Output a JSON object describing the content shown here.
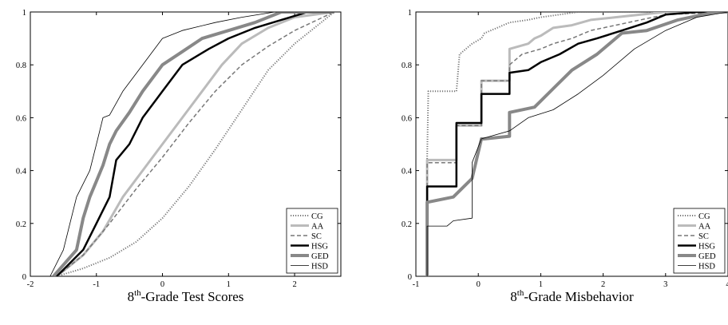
{
  "chart_data": [
    {
      "type": "line",
      "xlabel_base": "8",
      "xlabel_sup": "th",
      "xlabel_rest": "-Grade Test Scores",
      "xlim": [
        -2,
        2.7
      ],
      "ylim": [
        0,
        1
      ],
      "xticks": [
        -2,
        -1,
        0,
        1,
        2
      ],
      "yticks": [
        0,
        0.2,
        0.4,
        0.6,
        0.8,
        1
      ],
      "legend_position": "bottom-right",
      "series": [
        {
          "name": "CG",
          "color": "#777777",
          "style": "dotted",
          "width": 2,
          "x": [
            -1.6,
            -1.2,
            -0.8,
            -0.4,
            0.0,
            0.4,
            0.8,
            1.2,
            1.6,
            2.0,
            2.3,
            2.6
          ],
          "y": [
            0.0,
            0.03,
            0.07,
            0.13,
            0.22,
            0.34,
            0.48,
            0.63,
            0.78,
            0.88,
            0.94,
            1.0
          ]
        },
        {
          "name": "AA",
          "color": "#bbbbbb",
          "style": "solid",
          "width": 3,
          "x": [
            -1.6,
            -1.2,
            -0.9,
            -0.6,
            -0.3,
            0.0,
            0.3,
            0.6,
            0.9,
            1.2,
            1.6,
            2.0,
            2.6
          ],
          "y": [
            0.0,
            0.08,
            0.17,
            0.3,
            0.4,
            0.5,
            0.6,
            0.7,
            0.8,
            0.88,
            0.94,
            0.98,
            1.0
          ]
        },
        {
          "name": "SC",
          "color": "#777777",
          "style": "dashed",
          "width": 1.5,
          "x": [
            -1.6,
            -1.2,
            -0.8,
            -0.4,
            0.0,
            0.4,
            0.8,
            1.2,
            1.6,
            2.0,
            2.6
          ],
          "y": [
            0.0,
            0.08,
            0.2,
            0.33,
            0.45,
            0.58,
            0.7,
            0.8,
            0.87,
            0.93,
            1.0
          ]
        },
        {
          "name": "HSG",
          "color": "#000000",
          "style": "solid",
          "width": 2.5,
          "x": [
            -1.6,
            -1.2,
            -1.0,
            -0.8,
            -0.7,
            -0.5,
            -0.3,
            0.0,
            0.3,
            0.7,
            1.0,
            1.4,
            1.8,
            2.2,
            2.6
          ],
          "y": [
            0.0,
            0.1,
            0.2,
            0.3,
            0.44,
            0.5,
            0.6,
            0.7,
            0.8,
            0.86,
            0.9,
            0.94,
            0.97,
            1.0,
            1.0
          ]
        },
        {
          "name": "GED",
          "color": "#888888",
          "style": "solid",
          "width": 4,
          "x": [
            -1.65,
            -1.3,
            -1.2,
            -1.1,
            -1.0,
            -0.9,
            -0.8,
            -0.7,
            -0.5,
            -0.3,
            0.0,
            0.3,
            0.6,
            1.0,
            1.4,
            1.8,
            2.2,
            2.6
          ],
          "y": [
            0.0,
            0.1,
            0.22,
            0.3,
            0.36,
            0.42,
            0.5,
            0.55,
            0.62,
            0.7,
            0.8,
            0.85,
            0.9,
            0.93,
            0.96,
            1.0,
            1.0,
            1.0
          ]
        },
        {
          "name": "HSD",
          "color": "#000000",
          "style": "solid",
          "width": 0.8,
          "x": [
            -1.7,
            -1.5,
            -1.3,
            -1.1,
            -1.0,
            -0.9,
            -0.8,
            -0.6,
            -0.3,
            0.0,
            0.3,
            0.8,
            1.2,
            1.7,
            2.6
          ],
          "y": [
            0.0,
            0.1,
            0.3,
            0.4,
            0.5,
            0.6,
            0.61,
            0.7,
            0.8,
            0.9,
            0.93,
            0.96,
            0.98,
            1.0,
            1.0
          ]
        }
      ]
    },
    {
      "type": "line",
      "xlabel_base": "8",
      "xlabel_sup": "th",
      "xlabel_rest": "-Grade Misbehavior",
      "xlim": [
        -1,
        4
      ],
      "ylim": [
        0,
        1
      ],
      "xticks": [
        -1,
        0,
        1,
        2,
        3,
        4
      ],
      "yticks": [
        0,
        0.2,
        0.4,
        0.6,
        0.8,
        1
      ],
      "legend_position": "bottom-right",
      "series": [
        {
          "name": "CG",
          "color": "#777777",
          "style": "dotted",
          "width": 2,
          "x": [
            -0.82,
            -0.82,
            -0.8,
            -0.35,
            -0.3,
            -0.2,
            -0.1,
            0.05,
            0.1,
            0.3,
            0.5,
            0.8,
            1.0,
            1.3,
            1.6,
            2.0,
            4.0
          ],
          "y": [
            0.0,
            0.44,
            0.7,
            0.7,
            0.84,
            0.86,
            0.88,
            0.9,
            0.92,
            0.94,
            0.96,
            0.97,
            0.98,
            0.99,
            1.0,
            1.0,
            1.0
          ]
        },
        {
          "name": "AA",
          "color": "#bbbbbb",
          "style": "solid",
          "width": 3,
          "x": [
            -0.82,
            -0.82,
            -0.35,
            -0.35,
            0.05,
            0.05,
            0.5,
            0.5,
            0.8,
            0.9,
            1.0,
            1.2,
            1.5,
            1.8,
            2.2,
            2.6,
            3.0,
            4.0
          ],
          "y": [
            0.0,
            0.44,
            0.44,
            0.57,
            0.57,
            0.74,
            0.74,
            0.86,
            0.88,
            0.9,
            0.91,
            0.94,
            0.95,
            0.97,
            0.98,
            0.99,
            1.0,
            1.0
          ]
        },
        {
          "name": "SC",
          "color": "#777777",
          "style": "dashed",
          "width": 1.5,
          "x": [
            -0.82,
            -0.82,
            -0.35,
            -0.35,
            0.05,
            0.05,
            0.5,
            0.5,
            0.7,
            1.0,
            1.2,
            1.5,
            1.8,
            2.2,
            2.6,
            3.0,
            4.0
          ],
          "y": [
            0.0,
            0.43,
            0.43,
            0.57,
            0.57,
            0.74,
            0.74,
            0.8,
            0.84,
            0.86,
            0.88,
            0.9,
            0.93,
            0.95,
            0.97,
            0.99,
            1.0
          ]
        },
        {
          "name": "HSG",
          "color": "#000000",
          "style": "solid",
          "width": 2.5,
          "x": [
            -0.82,
            -0.82,
            -0.35,
            -0.35,
            0.05,
            0.05,
            0.5,
            0.5,
            0.8,
            1.0,
            1.3,
            1.6,
            1.9,
            2.3,
            2.7,
            3.0,
            3.5,
            4.0
          ],
          "y": [
            0.0,
            0.34,
            0.34,
            0.58,
            0.58,
            0.69,
            0.69,
            0.77,
            0.78,
            0.81,
            0.84,
            0.88,
            0.9,
            0.93,
            0.96,
            0.99,
            1.0,
            1.0
          ]
        },
        {
          "name": "GED",
          "color": "#888888",
          "style": "solid",
          "width": 4,
          "x": [
            -0.82,
            -0.82,
            -0.4,
            -0.1,
            0.05,
            0.1,
            0.5,
            0.5,
            0.9,
            1.2,
            1.5,
            1.9,
            2.3,
            2.7,
            3.2,
            3.8,
            4.0
          ],
          "y": [
            0.0,
            0.28,
            0.3,
            0.37,
            0.52,
            0.52,
            0.53,
            0.62,
            0.64,
            0.71,
            0.78,
            0.84,
            0.92,
            0.93,
            0.97,
            1.0,
            1.0
          ]
        },
        {
          "name": "HSD",
          "color": "#000000",
          "style": "solid",
          "width": 0.8,
          "x": [
            -0.82,
            -0.82,
            -0.5,
            -0.4,
            -0.1,
            -0.1,
            0.05,
            0.5,
            0.8,
            1.2,
            1.6,
            2.0,
            2.5,
            3.0,
            3.5,
            4.0
          ],
          "y": [
            0.0,
            0.19,
            0.19,
            0.21,
            0.22,
            0.43,
            0.52,
            0.55,
            0.6,
            0.63,
            0.69,
            0.76,
            0.86,
            0.93,
            0.98,
            1.0
          ]
        }
      ]
    }
  ]
}
